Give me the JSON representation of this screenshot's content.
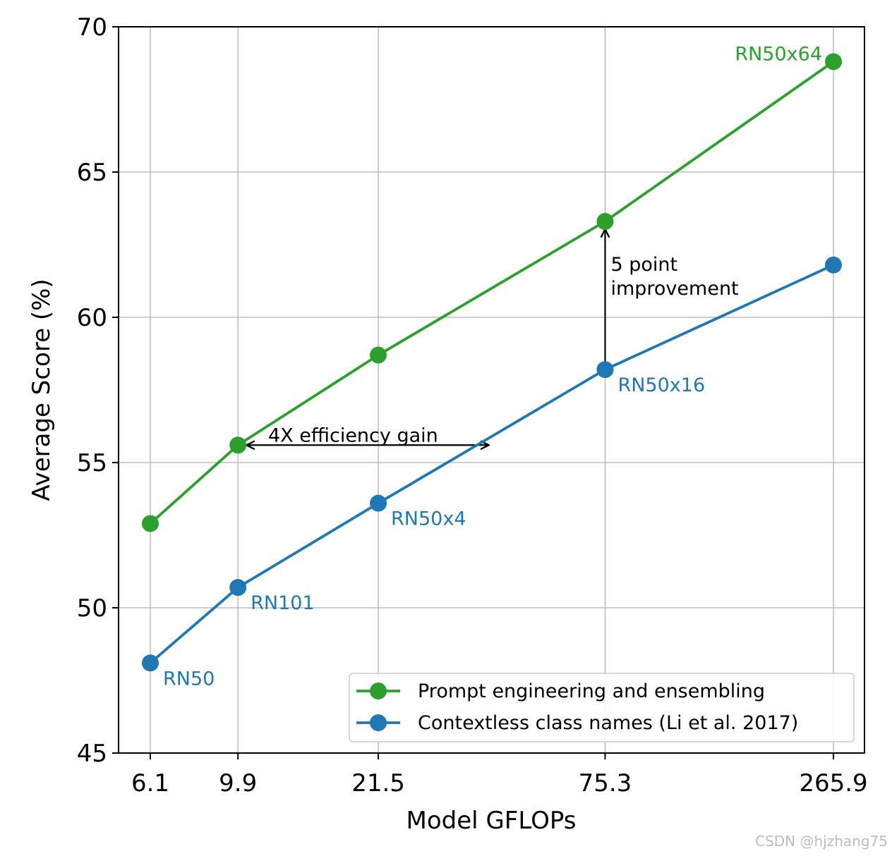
{
  "chart_data": {
    "type": "line",
    "x_is_log": true,
    "xlabel": "Model GFLOPs",
    "ylabel": "Average Score (%)",
    "x_ticks": [
      6.1,
      9.9,
      21.5,
      75.3,
      265.9
    ],
    "x_tick_labels": [
      "6.1",
      "9.9",
      "21.5",
      "75.3",
      "265.9"
    ],
    "y_ticks": [
      45,
      50,
      55,
      60,
      65,
      70
    ],
    "y_tick_labels": [
      "45",
      "50",
      "55",
      "60",
      "65",
      "70"
    ],
    "ylim": [
      45,
      70
    ],
    "grid": true,
    "legend_position": "lower-right",
    "series": [
      {
        "name": "Prompt engineering and ensembling",
        "color": "#2ca02c",
        "x": [
          6.1,
          9.9,
          21.5,
          75.3,
          265.9
        ],
        "y": [
          52.9,
          55.6,
          58.7,
          63.3,
          68.8
        ]
      },
      {
        "name": "Contextless class names (Li et al. 2017)",
        "color": "#1f77b4",
        "x": [
          6.1,
          9.9,
          21.5,
          75.3,
          265.9
        ],
        "y": [
          48.1,
          50.7,
          53.6,
          58.2,
          61.8
        ]
      }
    ],
    "point_labels": [
      {
        "text": "RN50",
        "x": 6.1,
        "y": 48.1,
        "color": "#1f77b4"
      },
      {
        "text": "RN101",
        "x": 9.9,
        "y": 50.7,
        "color": "#1f77b4"
      },
      {
        "text": "RN50x4",
        "x": 21.5,
        "y": 53.6,
        "color": "#1f77b4"
      },
      {
        "text": "RN50x16",
        "x": 75.3,
        "y": 58.2,
        "color": "#1f77b4"
      },
      {
        "text": "RN50x64",
        "x": 265.9,
        "y": 68.8,
        "color": "#2ca02c"
      }
    ],
    "annotations": {
      "efficiency": {
        "text": "4X efficiency gain",
        "x_from": 9.9,
        "x_to": 39.6,
        "y": 55.6
      },
      "improvement": {
        "lines": [
          "5 point",
          "improvement"
        ],
        "x": 75.3,
        "y_from": 58.2,
        "y_to": 63.3
      }
    }
  },
  "watermark": "CSDN @hjzhang75"
}
